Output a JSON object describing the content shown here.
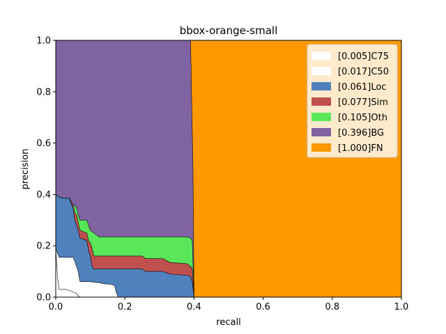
{
  "chart_data": {
    "type": "area",
    "title": "bbox-orange-small",
    "xlabel": "recall",
    "ylabel": "precision",
    "xlim": [
      0,
      1
    ],
    "ylim": [
      0,
      1
    ],
    "grid": false,
    "legend_position": "top-right",
    "x_ticks": [
      "0.0",
      "0.2",
      "0.4",
      "0.6",
      "0.8",
      "1.0"
    ],
    "y_ticks": [
      "0.0",
      "0.2",
      "0.4",
      "0.6",
      "0.8",
      "1.0"
    ],
    "series": [
      {
        "name": "[1.000]FN",
        "color": "#ff9900",
        "x": [
          0,
          1
        ],
        "y": [
          1.0,
          1.0
        ]
      },
      {
        "name": "[0.396]BG",
        "color": "#8064a2",
        "x": [
          0,
          0.39,
          0.397,
          0.4
        ],
        "y": [
          1.0,
          1.0,
          0.5,
          0.0
        ]
      },
      {
        "name": "[0.105]Oth",
        "color": "#5ae65a",
        "x": [
          0,
          0.01,
          0.02,
          0.04,
          0.045,
          0.05,
          0.055,
          0.06,
          0.065,
          0.07,
          0.09,
          0.095,
          0.1,
          0.12,
          0.125,
          0.13,
          0.38,
          0.39,
          0.395,
          0.4
        ],
        "y": [
          0.4,
          0.39,
          0.385,
          0.385,
          0.37,
          0.36,
          0.355,
          0.35,
          0.32,
          0.3,
          0.3,
          0.28,
          0.26,
          0.24,
          0.235,
          0.235,
          0.235,
          0.23,
          0.22,
          0.0
        ]
      },
      {
        "name": "[0.077]Sim",
        "color": "#c0504d",
        "x": [
          0,
          0.01,
          0.02,
          0.04,
          0.045,
          0.05,
          0.055,
          0.06,
          0.065,
          0.07,
          0.09,
          0.095,
          0.1,
          0.105,
          0.11,
          0.2,
          0.25,
          0.26,
          0.31,
          0.33,
          0.38,
          0.39,
          0.395,
          0.4
        ],
        "y": [
          0.4,
          0.39,
          0.385,
          0.385,
          0.37,
          0.36,
          0.33,
          0.32,
          0.29,
          0.26,
          0.25,
          0.22,
          0.21,
          0.19,
          0.16,
          0.16,
          0.16,
          0.15,
          0.15,
          0.135,
          0.13,
          0.12,
          0.11,
          0.0
        ]
      },
      {
        "name": "[0.061]Loc",
        "color": "#4f81bd",
        "x": [
          0,
          0.01,
          0.02,
          0.04,
          0.045,
          0.05,
          0.055,
          0.06,
          0.065,
          0.07,
          0.09,
          0.095,
          0.1,
          0.105,
          0.11,
          0.2,
          0.25,
          0.26,
          0.31,
          0.33,
          0.38,
          0.39,
          0.395,
          0.4
        ],
        "y": [
          0.4,
          0.39,
          0.385,
          0.385,
          0.36,
          0.35,
          0.3,
          0.28,
          0.26,
          0.23,
          0.22,
          0.18,
          0.16,
          0.12,
          0.11,
          0.11,
          0.11,
          0.1,
          0.1,
          0.09,
          0.085,
          0.08,
          0.06,
          0.0
        ]
      },
      {
        "name": "[0.017]C50",
        "color": "#ffffff",
        "x": [
          0,
          0.005,
          0.01,
          0.05,
          0.055,
          0.06,
          0.065,
          0.07,
          0.1,
          0.11,
          0.12,
          0.13,
          0.14,
          0.16,
          0.17,
          0.175,
          0.18
        ],
        "y": [
          0.19,
          0.17,
          0.155,
          0.155,
          0.14,
          0.12,
          0.1,
          0.06,
          0.06,
          0.058,
          0.057,
          0.055,
          0.052,
          0.05,
          0.045,
          0.02,
          0.0
        ]
      },
      {
        "name": "[0.005]C75",
        "color": "#ffffff",
        "x": [
          0,
          0.005,
          0.01,
          0.015,
          0.03,
          0.04,
          0.05,
          0.06,
          0.065,
          0.07
        ],
        "y": [
          0.19,
          0.08,
          0.03,
          0.03,
          0.03,
          0.025,
          0.02,
          0.015,
          0.005,
          0.0
        ]
      }
    ],
    "legend_order": [
      "[0.005]C75",
      "[0.017]C50",
      "[0.061]Loc",
      "[0.077]Sim",
      "[0.105]Oth",
      "[0.396]BG",
      "[1.000]FN"
    ]
  }
}
